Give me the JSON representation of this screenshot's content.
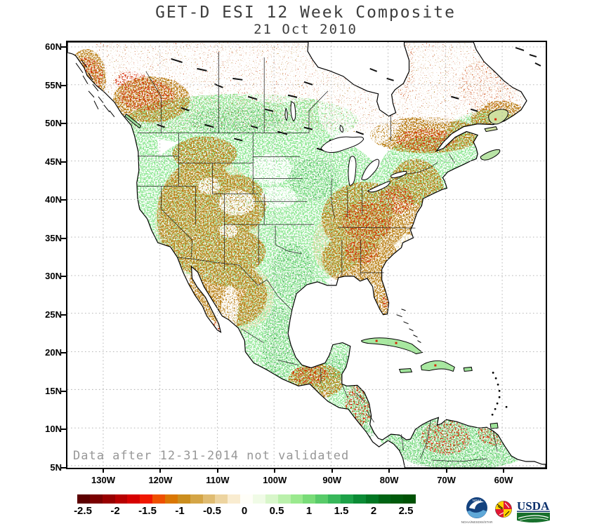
{
  "title": "GET-D ESI 12 Week Composite",
  "subtitle": "21 Oct 2010",
  "map": {
    "note": "Data after 12-31-2014 not validated",
    "lat_tick_labels": [
      "60N",
      "55N",
      "50N",
      "45N",
      "40N",
      "35N",
      "30N",
      "25N",
      "20N",
      "15N",
      "10N",
      "5N"
    ],
    "lon_tick_labels": [
      "130W",
      "120W",
      "110W",
      "100W",
      "90W",
      "80W",
      "70W",
      "60W"
    ]
  },
  "colorbar": {
    "tick_labels": [
      "-2.5",
      "-2",
      "-1.5",
      "-1",
      "-0.5",
      "0",
      "0.5",
      "1",
      "1.5",
      "2",
      "2.5"
    ],
    "palette": [
      "#5c0000",
      "#7a0000",
      "#980000",
      "#b80000",
      "#d60000",
      "#f01800",
      "#ef5000",
      "#da7703",
      "#cb8e1e",
      "#d4a546",
      "#e0bc72",
      "#edd4a0",
      "#f9ecd0",
      "#fffef8",
      "#f0fbe6",
      "#d8f6ca",
      "#baf0ab",
      "#9ae98e",
      "#79dc78",
      "#58cb69",
      "#38b75a",
      "#1da148",
      "#0b8b35",
      "#027723",
      "#006414",
      "#005a0c",
      "#005205"
    ]
  },
  "logos": {
    "noaa_acronym": "NOAA",
    "noaa_caption": "NOAA/NESDIS/STAR",
    "usda_wordmark": "USDA"
  },
  "colors": {
    "positive_green": "#2f9e45",
    "negative_brown": "#b97e14",
    "severe_red": "#d42604",
    "gridline_gray": "#adadad"
  },
  "chart_data": {
    "type": "heatmap",
    "title": "GET-D ESI 12 Week Composite",
    "date": "21 Oct 2010",
    "colorbar_ticks": [
      -2.5,
      -2,
      -1.5,
      -1,
      -0.5,
      0,
      0.5,
      1,
      1.5,
      2,
      2.5
    ],
    "colorbar_range": [
      -2.5,
      2.5
    ],
    "lat_ticks": [
      "60N",
      "55N",
      "50N",
      "45N",
      "40N",
      "35N",
      "30N",
      "25N",
      "20N",
      "15N",
      "10N",
      "5N"
    ],
    "lon_ticks": [
      "130W",
      "120W",
      "110W",
      "100W",
      "90W",
      "80W",
      "70W",
      "60W"
    ],
    "grid": true,
    "legend_position": "bottom"
  }
}
